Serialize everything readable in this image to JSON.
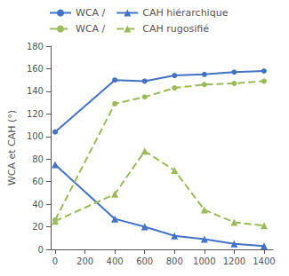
{
  "chart_data": {
    "type": "line",
    "ylabel": "WCA et CAH (°)",
    "x": [
      0,
      400,
      600,
      800,
      1000,
      1200,
      1400
    ],
    "series": [
      {
        "name": "WCA /",
        "color": "#4472C4",
        "marker": "circle",
        "line_style": "solid",
        "values": [
          104,
          150,
          149,
          154,
          155,
          157,
          158
        ]
      },
      {
        "name": "CAH hiérarchique",
        "color": "#4472C4",
        "marker": "triangle",
        "line_style": "solid",
        "values": [
          75,
          27,
          20,
          12,
          9,
          5,
          3
        ]
      },
      {
        "name": "WCA /",
        "color": "#9BBB59",
        "marker": "circle",
        "line_style": "dashed",
        "values": [
          26,
          129,
          135,
          143,
          146,
          147,
          149
        ]
      },
      {
        "name": "CAH rugosifié",
        "color": "#9BBB59",
        "marker": "triangle",
        "line_style": "dashed",
        "values": [
          25,
          49,
          87,
          70,
          35,
          24,
          21
        ]
      }
    ],
    "xlim": [
      -30,
      1460
    ],
    "xticks": [
      0,
      200,
      400,
      600,
      800,
      1000,
      1200,
      1400
    ],
    "ylim": [
      0,
      180
    ],
    "yticks": [
      0,
      20,
      40,
      60,
      80,
      100,
      120,
      140,
      160,
      180
    ],
    "grid": false,
    "legend": "top"
  }
}
